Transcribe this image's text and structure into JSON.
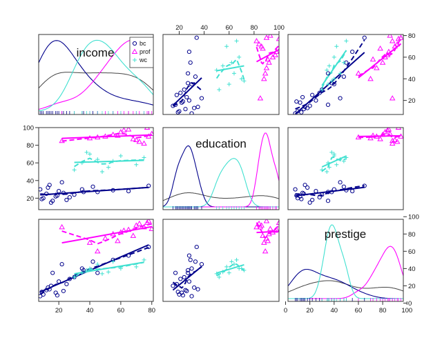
{
  "chart_data": {
    "type": "scatter",
    "title": "",
    "variables": [
      "income",
      "education",
      "prestige"
    ],
    "groups": [
      {
        "name": "bc",
        "color": "#00008b",
        "marker": "circle"
      },
      {
        "name": "prof",
        "color": "#ff00ff",
        "marker": "triangle"
      },
      {
        "name": "wc",
        "color": "#40e0d0",
        "marker": "plus"
      }
    ],
    "axis_ranges": {
      "income": [
        7,
        81
      ],
      "education": [
        7,
        100
      ],
      "prestige": [
        2,
        97
      ]
    },
    "ticks": {
      "income": [
        "20",
        "40",
        "60",
        "80"
      ],
      "education": [
        "20",
        "40",
        "60",
        "80",
        "100"
      ],
      "prestige": [
        "0",
        "20",
        "40",
        "60",
        "80",
        "100"
      ],
      "prestige_right": [
        "20",
        "40",
        "60",
        "80"
      ]
    },
    "legend": {
      "placement": "top-right of income panel",
      "entries": [
        "bc",
        "prof",
        "wc"
      ]
    },
    "grid": false,
    "data": {
      "bc": {
        "income": [
          10,
          12,
          15,
          8,
          18,
          20,
          13,
          25,
          30,
          23,
          27,
          14,
          16,
          19,
          35,
          45,
          42,
          55,
          65,
          78,
          36,
          9,
          22
        ],
        "education": [
          20,
          25,
          15,
          30,
          22,
          28,
          32,
          18,
          24,
          26,
          21,
          35,
          17,
          23,
          30,
          27,
          33,
          29,
          28,
          34,
          27,
          19,
          38
        ],
        "prestige": [
          10,
          15,
          20,
          8,
          12,
          25,
          18,
          22,
          30,
          14,
          28,
          16,
          35,
          9,
          40,
          35,
          48,
          50,
          55,
          65,
          38,
          13,
          45
        ]
      },
      "prof": {
        "income": [
          22,
          40,
          50,
          55,
          60,
          65,
          70,
          72,
          75,
          78,
          80,
          68,
          58,
          45,
          62,
          77
        ],
        "education": [
          85,
          88,
          90,
          92,
          95,
          98,
          86,
          84,
          82,
          90,
          93,
          87,
          91,
          89,
          97,
          100
        ],
        "prestige": [
          88,
          70,
          75,
          80,
          82,
          85,
          90,
          92,
          88,
          95,
          86,
          78,
          72,
          60,
          84,
          93
        ]
      },
      "wc": {
        "income": [
          30,
          35,
          45,
          40,
          52,
          55,
          60,
          70,
          75,
          38,
          48
        ],
        "education": [
          52,
          60,
          64,
          70,
          55,
          62,
          68,
          58,
          66,
          72,
          50
        ],
        "prestige": [
          30,
          35,
          45,
          40,
          36,
          48,
          40,
          42,
          50,
          38,
          34
        ]
      }
    }
  }
}
